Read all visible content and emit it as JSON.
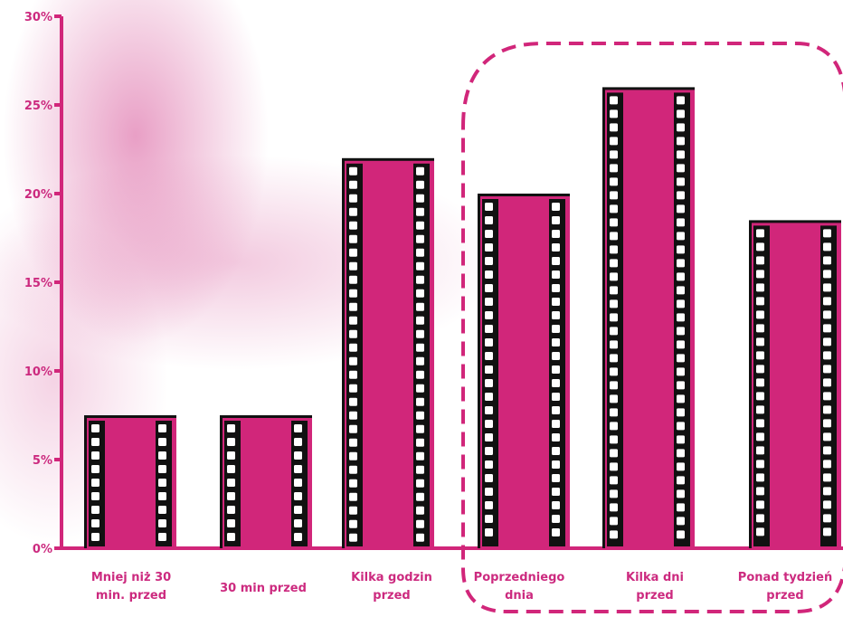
{
  "chart_data": {
    "type": "bar",
    "categories": [
      [
        "Mniej niż 30",
        "min. przed"
      ],
      [
        "30 min przed"
      ],
      [
        "Kilka godzin",
        "przed"
      ],
      [
        "Poprzedniego",
        "dnia"
      ],
      [
        "Kilka dni",
        "przed"
      ],
      [
        "Ponad tydzień",
        "przed"
      ]
    ],
    "values": [
      7.5,
      7.5,
      22,
      20,
      26,
      18.5
    ],
    "yticks": [
      "0%",
      "5%",
      "10%",
      "15%",
      "20%",
      "25%",
      "30%"
    ],
    "ylim": [
      0,
      30
    ],
    "unit": "%",
    "highlight": {
      "from_index": 3,
      "to_index": 5,
      "style": "dashed-rounded-box"
    },
    "grid": false,
    "legend": "none",
    "colors": {
      "bar": "#d1267a",
      "frame": "#111111",
      "perforation": "#ffffff",
      "axis": "#d1267a",
      "text": "#cc2a7f"
    }
  }
}
